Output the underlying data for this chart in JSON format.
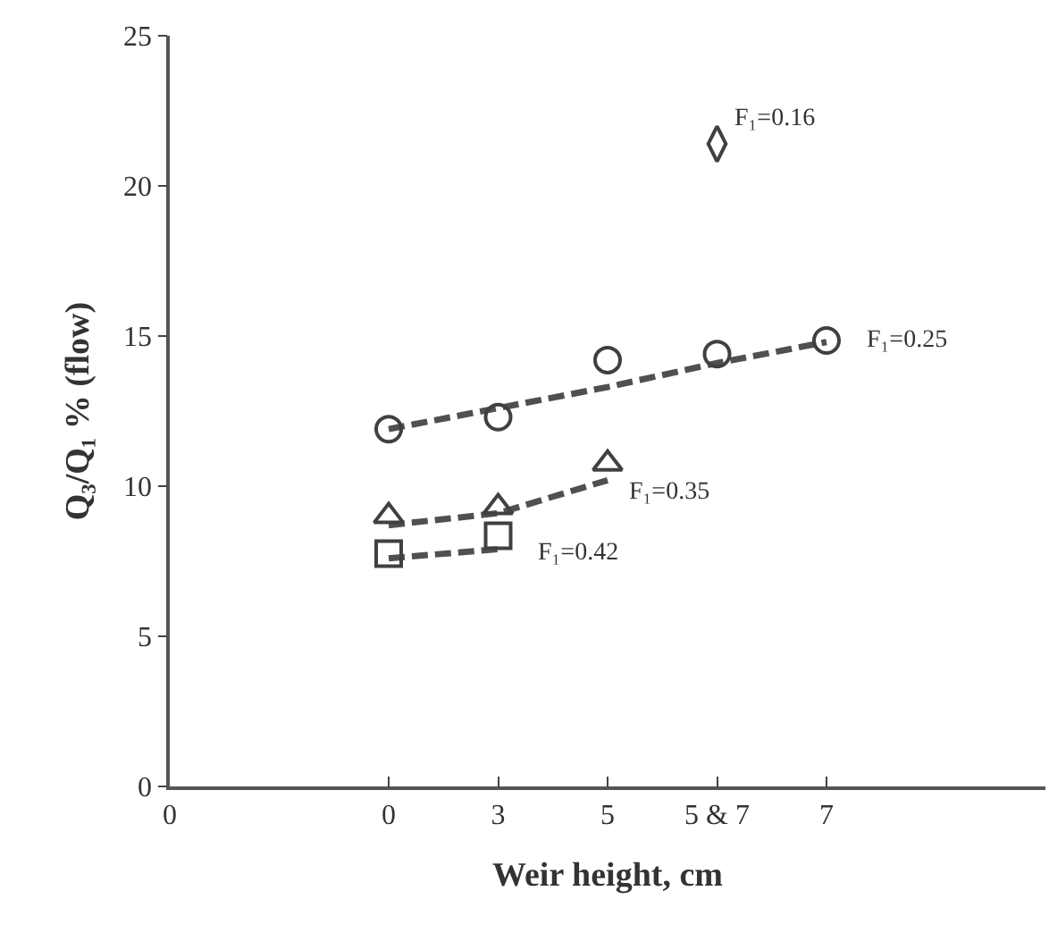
{
  "chart_data": {
    "type": "scatter",
    "xlabel": "Weir height, cm",
    "ylabel": "Q₃/Q₁ % (flow)",
    "categories": [
      "0",
      null,
      "0",
      "3",
      "5",
      "5 & 7",
      "7"
    ],
    "ylim": [
      0,
      25
    ],
    "yticks": [
      0,
      5,
      10,
      15,
      20,
      25
    ],
    "legend": false,
    "series": [
      {
        "name": "F₁=0.16",
        "marker": "diamond",
        "color": "#404040",
        "values": [
          null,
          null,
          null,
          null,
          null,
          21.4,
          null
        ]
      },
      {
        "name": "F₁=0.25",
        "marker": "circle",
        "color": "#404040",
        "values": [
          null,
          null,
          11.9,
          12.3,
          14.2,
          14.4,
          14.85
        ]
      },
      {
        "name": "F₁=0.35",
        "marker": "triangle",
        "color": "#404040",
        "values": [
          null,
          null,
          9.0,
          9.3,
          10.75,
          null,
          null
        ]
      },
      {
        "name": "F₁=0.42",
        "marker": "square",
        "color": "#404040",
        "values": [
          null,
          null,
          7.75,
          8.35,
          null,
          null,
          null
        ]
      },
      {
        "type": "line",
        "line_style": "dashed",
        "marker": "none",
        "color": "#505050",
        "values": [
          null,
          null,
          11.9,
          12.6,
          13.3,
          14.1,
          14.8
        ]
      },
      {
        "type": "line",
        "line_style": "dashed",
        "marker": "none",
        "color": "#505050",
        "values": [
          null,
          null,
          8.7,
          9.1,
          10.2,
          null,
          null
        ]
      },
      {
        "type": "line",
        "line_style": "dashed",
        "marker": "none",
        "color": "#505050",
        "values": [
          null,
          null,
          7.6,
          7.9,
          null,
          null,
          null
        ]
      }
    ]
  }
}
